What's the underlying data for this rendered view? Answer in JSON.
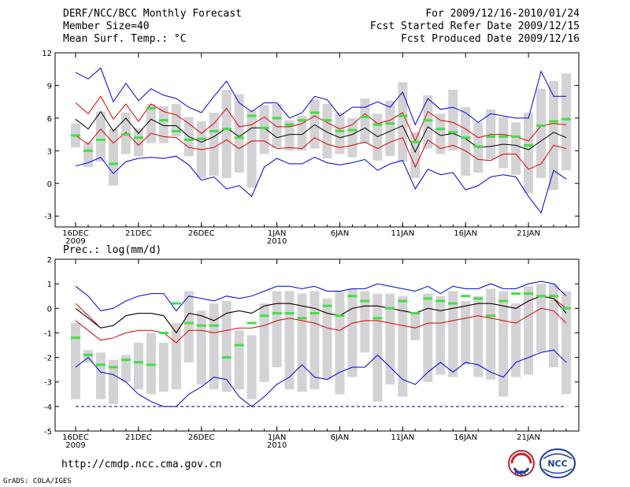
{
  "header": {
    "left": [
      "DERF/NCC/BCC Monthly Forecast",
      "Member Size=40",
      "Mean Surf. Temp.: °C"
    ],
    "right": [
      "For 2009/12/16-2010/01/24",
      "Fcst Started Refer Date 2009/12/15",
      "Fcst Produced Date 2009/12/16"
    ]
  },
  "footer": {
    "url": "http://cmdp.ncc.cma.gov.cn",
    "credit": "GrADS: COLA/IGES"
  },
  "logos": {
    "bcc": "BCC",
    "ncc": "NCC"
  },
  "colors": {
    "max_min": "#0000dd",
    "spread": "#dd0000",
    "mean": "#000000",
    "box": "#d3d3d6",
    "median": "#44dd44"
  },
  "chart_data": [
    {
      "type": "box-line",
      "title": "Mean Surf. Temp.: °C",
      "x_tick_labels": [
        {
          "day": 0,
          "label": "16DEC",
          "sub": "2009"
        },
        {
          "day": 5,
          "label": "21DEC",
          "sub": ""
        },
        {
          "day": 10,
          "label": "26DEC",
          "sub": ""
        },
        {
          "day": 16,
          "label": "1JAN",
          "sub": "2010"
        },
        {
          "day": 21,
          "label": "6JAN",
          "sub": ""
        },
        {
          "day": 26,
          "label": "11JAN",
          "sub": ""
        },
        {
          "day": 31,
          "label": "16JAN",
          "sub": ""
        },
        {
          "day": 36,
          "label": "21JAN",
          "sub": ""
        }
      ],
      "y_ticks": [
        "-3",
        "0",
        "3",
        "6",
        "9",
        "12"
      ],
      "ylim": [
        -4,
        12
      ],
      "ref_line": null,
      "series": {
        "max": [
          10.2,
          9.6,
          10.6,
          7.5,
          9.2,
          7.6,
          8.7,
          8.1,
          7.8,
          7.0,
          6.5,
          8.0,
          9.4,
          7.4,
          6.6,
          7.4,
          7.4,
          6.0,
          6.5,
          8.0,
          7.7,
          6.2,
          7.0,
          7.0,
          7.5,
          7.0,
          8.4,
          5.4,
          7.8,
          6.8,
          7.0,
          6.5,
          5.6,
          6.4,
          6.2,
          6.0,
          6.0,
          10.3,
          8.0,
          8.0
        ],
        "spread_high": [
          7.4,
          6.4,
          8.0,
          5.9,
          7.3,
          5.7,
          7.3,
          6.6,
          6.3,
          5.5,
          4.6,
          5.5,
          6.9,
          5.2,
          5.4,
          6.1,
          5.2,
          5.2,
          5.5,
          6.2,
          5.6,
          5.0,
          5.4,
          6.4,
          5.5,
          5.8,
          6.5,
          3.9,
          6.6,
          5.8,
          5.6,
          5.0,
          4.2,
          4.5,
          4.5,
          4.3,
          3.9,
          5.3,
          5.5,
          5.4
        ],
        "mean": [
          5.9,
          5.0,
          6.6,
          4.8,
          6.0,
          4.6,
          5.9,
          5.3,
          5.3,
          4.3,
          3.8,
          4.3,
          5.1,
          4.3,
          5.1,
          5.1,
          4.2,
          4.5,
          4.5,
          5.4,
          4.7,
          4.2,
          4.5,
          5.1,
          4.3,
          4.8,
          5.3,
          2.9,
          5.2,
          4.4,
          4.6,
          4.1,
          3.3,
          3.4,
          3.6,
          3.5,
          3.1,
          3.9,
          4.7,
          4.2
        ],
        "spread_low": [
          4.4,
          3.6,
          5.0,
          3.7,
          4.7,
          3.5,
          4.6,
          4.3,
          4.2,
          3.3,
          3.1,
          3.3,
          4.0,
          3.2,
          3.9,
          3.9,
          3.2,
          3.3,
          3.2,
          4.2,
          3.6,
          3.3,
          3.5,
          3.8,
          3.2,
          3.8,
          4.2,
          1.5,
          4.0,
          3.2,
          3.5,
          3.0,
          2.2,
          2.1,
          2.7,
          2.7,
          1.3,
          1.8,
          3.5,
          3.2
        ],
        "min": [
          1.6,
          1.9,
          2.4,
          0.9,
          2.0,
          2.3,
          2.4,
          2.3,
          2.5,
          1.7,
          0.3,
          0.6,
          -0.5,
          -0.2,
          -1.2,
          1.5,
          2.3,
          1.8,
          1.8,
          2.4,
          1.9,
          1.7,
          1.9,
          2.2,
          1.2,
          1.8,
          2.1,
          -0.5,
          1.3,
          0.8,
          1.0,
          -0.6,
          -0.2,
          0.6,
          0.8,
          0.6,
          -1.2,
          -2.7,
          1.2,
          0.4
        ],
        "box_high": [
          5.5,
          3.8,
          6.6,
          5.0,
          6.5,
          5.1,
          7.3,
          7.1,
          7.3,
          6.1,
          5.7,
          6.5,
          8.6,
          8.2,
          6.7,
          7.2,
          7.3,
          5.8,
          6.2,
          7.7,
          7.3,
          6.5,
          6.0,
          7.8,
          6.4,
          7.6,
          9.3,
          4.7,
          8.1,
          6.4,
          8.6,
          7.0,
          5.6,
          6.8,
          6.1,
          5.6,
          6.5,
          8.7,
          9.4,
          10.1
        ],
        "box_low": [
          3.3,
          1.5,
          2.0,
          -0.2,
          2.7,
          2.5,
          3.7,
          3.7,
          4.3,
          2.5,
          0.5,
          0.7,
          0.5,
          1.0,
          -0.4,
          2.7,
          3.3,
          3.0,
          3.0,
          3.2,
          2.3,
          2.7,
          2.4,
          3.7,
          2.1,
          2.5,
          2.0,
          0.5,
          3.2,
          2.7,
          3.0,
          0.7,
          1.0,
          2.2,
          1.4,
          0.8,
          -0.9,
          0.5,
          -0.6,
          1.2
        ],
        "median": [
          4.4,
          3.0,
          4.0,
          1.8,
          4.5,
          4.2,
          6.9,
          5.8,
          4.8,
          4.0,
          4.1,
          4.8,
          5.0,
          4.2,
          6.2,
          5.1,
          6.0,
          5.4,
          5.8,
          6.5,
          5.8,
          4.8,
          4.9,
          6.1,
          5.4,
          5.5,
          6.2,
          3.8,
          5.8,
          5.0,
          4.7,
          4.2,
          3.4,
          4.3,
          4.3,
          4.3,
          3.5,
          5.3,
          5.7,
          5.9
        ]
      }
    },
    {
      "type": "box-line",
      "title": "Prec.: log(mm/d)",
      "x_tick_labels": [
        {
          "day": 0,
          "label": "16DEC",
          "sub": "2009"
        },
        {
          "day": 5,
          "label": "21DEC",
          "sub": ""
        },
        {
          "day": 10,
          "label": "26DEC",
          "sub": ""
        },
        {
          "day": 16,
          "label": "1JAN",
          "sub": "2010"
        },
        {
          "day": 21,
          "label": "6JAN",
          "sub": ""
        },
        {
          "day": 26,
          "label": "11JAN",
          "sub": ""
        },
        {
          "day": 31,
          "label": "16JAN",
          "sub": ""
        },
        {
          "day": 36,
          "label": "21JAN",
          "sub": ""
        }
      ],
      "y_ticks": [
        "-5",
        "-4",
        "-3",
        "-2",
        "-1",
        "0",
        "1",
        "2"
      ],
      "ylim": [
        -5,
        2
      ],
      "ref_line": -4,
      "series": {
        "max": [
          0.9,
          0.5,
          -0.1,
          0.0,
          0.3,
          0.5,
          0.6,
          0.6,
          -0.1,
          0.5,
          0.4,
          0.3,
          0.5,
          0.4,
          0.5,
          0.7,
          0.9,
          0.9,
          0.8,
          0.9,
          0.7,
          0.7,
          0.8,
          0.8,
          1.0,
          0.9,
          0.8,
          0.7,
          0.9,
          0.6,
          0.9,
          0.8,
          0.8,
          1.0,
          0.8,
          0.8,
          1.0,
          1.1,
          1.0,
          0.5
        ],
        "spread_high": [
          0.2,
          -0.3,
          -0.8,
          -0.7,
          -0.3,
          -0.2,
          -0.2,
          -0.3,
          -1.0,
          -0.2,
          -0.3,
          -0.5,
          -0.2,
          -0.1,
          -0.2,
          0.1,
          0.2,
          0.2,
          0.1,
          0.0,
          -0.2,
          -0.3,
          0.0,
          0.1,
          0.1,
          0.0,
          -0.1,
          -0.2,
          0.0,
          -0.1,
          0.0,
          0.1,
          0.2,
          0.2,
          0.1,
          0.0,
          0.3,
          0.5,
          0.4,
          0.0
        ],
        "mean": [
          0.0,
          -0.4,
          -0.8,
          -0.7,
          -0.3,
          -0.2,
          -0.2,
          -0.3,
          -1.0,
          -0.2,
          -0.3,
          -0.5,
          -0.2,
          -0.1,
          -0.2,
          0.1,
          0.2,
          0.2,
          0.1,
          0.0,
          -0.2,
          -0.3,
          0.0,
          0.1,
          0.1,
          0.0,
          -0.1,
          -0.2,
          0.0,
          -0.1,
          0.0,
          0.1,
          0.2,
          0.2,
          0.1,
          0.0,
          0.3,
          0.5,
          0.4,
          -0.2
        ],
        "spread_low": [
          -0.5,
          -0.9,
          -1.3,
          -1.2,
          -1.0,
          -0.9,
          -0.9,
          -1.0,
          -1.4,
          -0.9,
          -0.9,
          -1.0,
          -0.9,
          -0.8,
          -0.8,
          -0.7,
          -0.5,
          -0.4,
          -0.5,
          -0.6,
          -0.8,
          -0.9,
          -0.6,
          -0.5,
          -0.5,
          -0.6,
          -0.7,
          -0.8,
          -0.6,
          -0.6,
          -0.5,
          -0.4,
          -0.3,
          -0.4,
          -0.5,
          -0.6,
          -0.3,
          0.0,
          -0.1,
          -0.6
        ],
        "min": [
          -2.4,
          -2.0,
          -2.6,
          -2.7,
          -3.0,
          -3.5,
          -3.8,
          -4.0,
          -4.0,
          -3.5,
          -3.2,
          -2.8,
          -2.9,
          -3.6,
          -4.0,
          -3.6,
          -3.1,
          -2.8,
          -2.3,
          -2.8,
          -2.9,
          -2.6,
          -2.4,
          -2.4,
          -1.9,
          -2.4,
          -2.9,
          -3.1,
          -2.6,
          -2.2,
          -2.6,
          -2.2,
          -2.3,
          -2.6,
          -2.8,
          -2.2,
          -2.0,
          -1.8,
          -1.7,
          -2.2
        ],
        "box_high": [
          -0.6,
          -1.7,
          -1.8,
          -2.1,
          -1.9,
          -1.4,
          -1.0,
          -1.4,
          -0.6,
          0.7,
          -0.1,
          0.2,
          0.3,
          -0.9,
          -1.1,
          0.2,
          0.7,
          0.7,
          0.6,
          0.7,
          0.4,
          0.7,
          0.8,
          0.7,
          0.6,
          0.6,
          0.5,
          -0.2,
          0.6,
          0.5,
          0.7,
          0.3,
          0.5,
          0.8,
          0.7,
          0.2,
          0.9,
          1.0,
          1.0,
          0.7
        ],
        "box_low": [
          -3.7,
          -2.2,
          -3.7,
          -3.9,
          -3.0,
          -3.3,
          -3.5,
          -3.4,
          -3.3,
          -2.2,
          -3.1,
          -3.3,
          -3.4,
          -3.3,
          -3.7,
          -3.0,
          -2.4,
          -3.3,
          -3.4,
          -3.3,
          -2.9,
          -3.5,
          -2.8,
          -1.8,
          -3.8,
          -3.1,
          -3.6,
          -1.3,
          -3.0,
          -2.7,
          -2.8,
          -2.3,
          -2.8,
          -2.9,
          -3.6,
          -2.8,
          -2.7,
          -1.8,
          -2.4,
          -3.5
        ],
        "median": [
          -1.2,
          -1.9,
          -2.3,
          -2.4,
          -2.1,
          -2.2,
          -2.3,
          -1.0,
          0.2,
          -0.6,
          -0.7,
          -0.7,
          -2.0,
          -1.5,
          -0.6,
          -0.3,
          -0.2,
          -0.2,
          -0.4,
          -0.2,
          0.1,
          -0.3,
          0.5,
          0.3,
          -0.4,
          0.0,
          0.3,
          -0.2,
          0.4,
          0.3,
          0.2,
          0.5,
          0.4,
          -0.3,
          0.3,
          0.6,
          0.6,
          0.5,
          0.5,
          0.0
        ]
      }
    }
  ]
}
